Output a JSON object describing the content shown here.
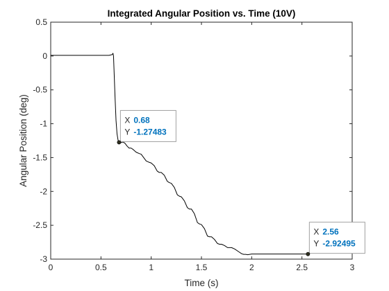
{
  "chart_data": {
    "type": "line",
    "title": "Integrated Angular Position vs. Time (10V)",
    "xlabel": "Time (s)",
    "ylabel": "Angular Position (deg)",
    "xlim": [
      0,
      3
    ],
    "ylim": [
      -3,
      0.5
    ],
    "xticks": [
      0,
      0.5,
      1,
      1.5,
      2,
      2.5,
      3
    ],
    "xtick_labels": [
      "0",
      "0.5",
      "1",
      "1.5",
      "2",
      "2.5",
      "3"
    ],
    "yticks": [
      0.5,
      0,
      -0.5,
      -1,
      -1.5,
      -2,
      -2.5,
      -3
    ],
    "ytick_labels": [
      "0.5",
      "0",
      "-0.5",
      "-1",
      "-1.5",
      "-2",
      "-2.5",
      "-3"
    ],
    "grid": false,
    "box": true,
    "series": [
      {
        "color": "#000000",
        "x": [
          0,
          0.1,
          0.2,
          0.3,
          0.4,
          0.5,
          0.58,
          0.61,
          0.62,
          0.625,
          0.63,
          0.64,
          0.65,
          0.66,
          0.67,
          0.68,
          0.7,
          0.72,
          0.74,
          0.76,
          0.78,
          0.8,
          0.82,
          0.85,
          0.88,
          0.9,
          0.92,
          0.95,
          0.98,
          1.0,
          1.03,
          1.06,
          1.08,
          1.1,
          1.13,
          1.16,
          1.18,
          1.2,
          1.23,
          1.26,
          1.28,
          1.3,
          1.33,
          1.36,
          1.38,
          1.4,
          1.43,
          1.46,
          1.48,
          1.5,
          1.53,
          1.56,
          1.58,
          1.6,
          1.63,
          1.66,
          1.68,
          1.7,
          1.73,
          1.76,
          1.78,
          1.8,
          1.83,
          1.86,
          1.88,
          1.9,
          1.92,
          1.94,
          1.96,
          1.98,
          2.0,
          2.05,
          2.1,
          2.2,
          2.3,
          2.4,
          2.5,
          2.56
        ],
        "y": [
          0.01,
          0.01,
          0.01,
          0.01,
          0.01,
          0.01,
          0.01,
          0.02,
          0.04,
          0.0,
          -0.2,
          -0.6,
          -0.95,
          -1.15,
          -1.24,
          -1.27483,
          -1.28,
          -1.27,
          -1.29,
          -1.33,
          -1.36,
          -1.36,
          -1.38,
          -1.42,
          -1.44,
          -1.45,
          -1.49,
          -1.55,
          -1.57,
          -1.58,
          -1.62,
          -1.7,
          -1.72,
          -1.72,
          -1.76,
          -1.85,
          -1.87,
          -1.88,
          -1.94,
          -2.05,
          -2.07,
          -2.08,
          -2.14,
          -2.24,
          -2.26,
          -2.26,
          -2.33,
          -2.46,
          -2.48,
          -2.49,
          -2.55,
          -2.66,
          -2.67,
          -2.67,
          -2.71,
          -2.77,
          -2.78,
          -2.78,
          -2.8,
          -2.83,
          -2.83,
          -2.83,
          -2.85,
          -2.88,
          -2.9,
          -2.92,
          -2.93,
          -2.93,
          -2.935,
          -2.93,
          -2.925,
          -2.925,
          -2.925,
          -2.925,
          -2.925,
          -2.925,
          -2.925,
          -2.92495
        ]
      }
    ],
    "datatips": [
      {
        "x": 0.68,
        "y": -1.27483,
        "x_label": "X",
        "y_label": "Y",
        "x_text": "0.68",
        "y_text": "-1.27483",
        "placement": "top-right"
      },
      {
        "x": 2.56,
        "y": -2.92495,
        "x_label": "X",
        "y_label": "Y",
        "x_text": "2.56",
        "y_text": "-2.92495",
        "placement": "top-right"
      }
    ],
    "colors": {
      "axes": "#262626",
      "datatip_value": "#0072BD",
      "datatip_border": "#A0A0A0",
      "datatip_marker": "#2F2F1F"
    }
  }
}
